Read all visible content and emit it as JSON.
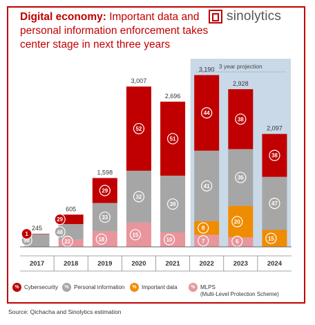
{
  "title": {
    "bold": "Digital economy:",
    "rest": " Important data and personal information enforcement takes center stage in next three years"
  },
  "logo": {
    "text": "sinolytics"
  },
  "source": "Source: Qichacha and Sinolytics estimation",
  "colors": {
    "cybersecurity": "#c00000",
    "personal_information": "#a6a6a6",
    "important_data": "#f08c00",
    "mlps": "#e8959b",
    "projection_bg": "#c9d9e8",
    "brand": "#c00000"
  },
  "legend": [
    {
      "key": "cybersecurity",
      "symbol": "%",
      "label": "Cybersecurity"
    },
    {
      "key": "personal_information",
      "symbol": "%",
      "label": "Personal information"
    },
    {
      "key": "important_data",
      "symbol": "%",
      "label": "Important data"
    },
    {
      "key": "mlps",
      "symbol": "%",
      "label": "MLPS",
      "sublabel": "(Multi-Level Protection Scheme)"
    }
  ],
  "chart_data": {
    "type": "bar",
    "stacked": true,
    "categories": [
      "2017",
      "2018",
      "2019",
      "2020",
      "2021",
      "2022",
      "2023",
      "2024"
    ],
    "totals": [
      245,
      605,
      1598,
      3007,
      2696,
      3190,
      2928,
      2097
    ],
    "total_labels": [
      "245",
      "605",
      "1,598",
      "3,007",
      "2,696",
      "3,190",
      "2,928",
      "2,097"
    ],
    "series": [
      {
        "name": "MLPS",
        "key": "mlps",
        "percent": [
          null,
          22,
          18,
          15,
          10,
          7,
          6,
          null
        ]
      },
      {
        "name": "Important data",
        "key": "important_data",
        "percent": [
          null,
          null,
          null,
          null,
          null,
          8,
          20,
          15
        ]
      },
      {
        "name": "Personal information",
        "key": "personal_information",
        "percent": [
          98,
          48,
          33,
          32,
          39,
          41,
          36,
          47
        ]
      },
      {
        "name": "Cybersecurity",
        "key": "cybersecurity",
        "percent": [
          1,
          29,
          29,
          52,
          51,
          44,
          38,
          38
        ]
      }
    ],
    "projection": {
      "label": "3 year projection",
      "categories": [
        "2022",
        "2023",
        "2024"
      ]
    },
    "ylim": [
      0,
      3300
    ],
    "grid": false,
    "legend_position": "bottom"
  }
}
